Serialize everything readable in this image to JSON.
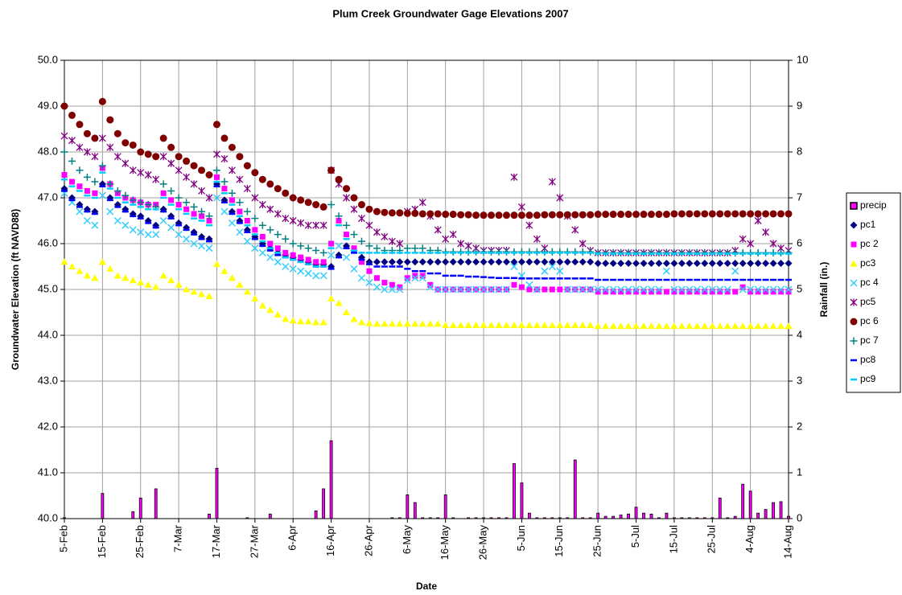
{
  "chart_data": {
    "type": "scatter",
    "title": "Plum Creek Groundwater Gage Elevations 2007",
    "x_label": "Date",
    "y_label": "Groundwater Elevation (ft NAVD88)",
    "y2_label": "Rainfall (in.)",
    "grid": true,
    "legend": "right",
    "ylim": [
      40,
      50
    ],
    "yticks": [
      {
        "value": 40,
        "label": "40.0"
      },
      {
        "value": 41,
        "label": "41.0"
      },
      {
        "value": 42,
        "label": "42.0"
      },
      {
        "value": 43,
        "label": "43.0"
      },
      {
        "value": 44,
        "label": "44.0"
      },
      {
        "value": 45,
        "label": "45.0"
      },
      {
        "value": 46,
        "label": "46.0"
      },
      {
        "value": 47,
        "label": "47.0"
      },
      {
        "value": 48,
        "label": "48.0"
      },
      {
        "value": 49,
        "label": "49.0"
      },
      {
        "value": 50,
        "label": "50.0"
      }
    ],
    "y2lim": [
      0,
      10
    ],
    "y2ticks": [
      0,
      1,
      2,
      3,
      4,
      5,
      6,
      7,
      8,
      9,
      10
    ],
    "categories": [
      "5-Feb",
      null,
      null,
      null,
      null,
      "15-Feb",
      null,
      null,
      null,
      null,
      "25-Feb",
      null,
      null,
      null,
      null,
      "7-Mar",
      null,
      null,
      null,
      null,
      "17-Mar",
      null,
      null,
      null,
      null,
      "27-Mar",
      null,
      null,
      null,
      null,
      "6-Apr",
      null,
      null,
      null,
      null,
      "16-Apr",
      null,
      null,
      null,
      null,
      "26-Apr",
      null,
      null,
      null,
      null,
      "6-May",
      null,
      null,
      null,
      null,
      "16-May",
      null,
      null,
      null,
      null,
      "26-May",
      null,
      null,
      null,
      null,
      "5-Jun",
      null,
      null,
      null,
      null,
      "15-Jun",
      null,
      null,
      null,
      null,
      "25-Jun",
      null,
      null,
      null,
      null,
      "5-Jul",
      null,
      null,
      null,
      null,
      "15-Jul",
      null,
      null,
      null,
      null,
      "25-Jul",
      null,
      null,
      null,
      null,
      "4-Aug",
      null,
      null,
      null,
      null,
      "14-Aug"
    ],
    "series": [
      {
        "name": "precip",
        "type": "bar",
        "axis": "y2",
        "color": "#ff00ff",
        "values": [
          0.02,
          0,
          0,
          0,
          0,
          0.55,
          0,
          0,
          0,
          0.15,
          0.45,
          0,
          0.65,
          0,
          0,
          0,
          0,
          0,
          0,
          0.1,
          1.1,
          0,
          0,
          0,
          0.02,
          0,
          0,
          0.1,
          0,
          0,
          0,
          0,
          0,
          0.17,
          0.65,
          1.7,
          0,
          0,
          0,
          0,
          0,
          0,
          0,
          0.02,
          0.02,
          0.52,
          0.35,
          0.02,
          0.02,
          0.02,
          0.52,
          0.02,
          0,
          0.02,
          0.02,
          0.02,
          0.02,
          0.02,
          0.02,
          1.2,
          0.78,
          0.12,
          0.02,
          0.02,
          0.02,
          0.02,
          0.02,
          1.28,
          0.02,
          0.02,
          0.12,
          0.05,
          0.05,
          0.08,
          0.1,
          0.25,
          0.12,
          0.1,
          0.02,
          0.12,
          0.02,
          0.02,
          0.02,
          0.02,
          0.02,
          0.02,
          0.45,
          0.02,
          0.05,
          0.75,
          0.6,
          0.12,
          0.2,
          0.35,
          0.37,
          0.05
        ]
      },
      {
        "name": "pc1",
        "marker": "diamond",
        "color": "#000080",
        "values": [
          47.2,
          47.0,
          46.85,
          46.75,
          46.7,
          47.3,
          47.0,
          46.85,
          46.75,
          46.65,
          46.6,
          46.5,
          46.4,
          46.75,
          46.6,
          46.45,
          46.35,
          46.25,
          46.15,
          46.1,
          47.3,
          46.95,
          46.7,
          46.5,
          46.3,
          46.15,
          46.0,
          45.9,
          45.8,
          45.75,
          45.7,
          45.65,
          45.6,
          45.55,
          45.55,
          45.5,
          45.75,
          45.95,
          45.85,
          45.7,
          45.6,
          45.6,
          45.6,
          45.6,
          45.6,
          45.6,
          45.6,
          45.6,
          45.6,
          45.6,
          45.6,
          45.6,
          45.6,
          45.6,
          45.6,
          45.6,
          45.6,
          45.6,
          45.6,
          45.6,
          45.6,
          45.6,
          45.6,
          45.6,
          45.6,
          45.6,
          45.6,
          45.6,
          45.6,
          45.6,
          45.57,
          45.57,
          45.57,
          45.57,
          45.57,
          45.57,
          45.57,
          45.57,
          45.57,
          45.57,
          45.57,
          45.57,
          45.57,
          45.57,
          45.57,
          45.57,
          45.57,
          45.57,
          45.57,
          45.57,
          45.57,
          45.57,
          45.57,
          45.57,
          45.57,
          45.57
        ]
      },
      {
        "name": "pc 2",
        "marker": "square",
        "color": "#ff00ff",
        "values": [
          47.5,
          47.35,
          47.25,
          47.15,
          47.1,
          47.65,
          47.3,
          47.1,
          47.0,
          46.95,
          46.9,
          46.85,
          46.85,
          47.1,
          46.95,
          46.85,
          46.75,
          46.65,
          46.6,
          46.5,
          47.45,
          47.2,
          46.95,
          46.7,
          46.5,
          46.3,
          46.15,
          46.0,
          45.9,
          45.8,
          45.75,
          45.7,
          45.65,
          45.6,
          45.6,
          46.0,
          46.5,
          46.2,
          45.9,
          45.6,
          45.4,
          45.25,
          45.15,
          45.1,
          45.05,
          45.25,
          45.3,
          45.3,
          45.1,
          45.0,
          45.0,
          45.0,
          45.0,
          45.0,
          45.0,
          45.0,
          45.0,
          45.0,
          45.0,
          45.1,
          45.05,
          45.0,
          45.0,
          45.0,
          45.0,
          45.0,
          45.0,
          45.0,
          45.0,
          45.0,
          44.95,
          44.95,
          44.95,
          44.95,
          44.95,
          44.95,
          44.95,
          44.95,
          44.95,
          44.95,
          44.95,
          44.95,
          44.95,
          44.95,
          44.95,
          44.95,
          44.95,
          44.95,
          44.95,
          45.05,
          44.95,
          44.95,
          44.95,
          44.95,
          44.95,
          44.95
        ]
      },
      {
        "name": "pc3",
        "marker": "triangle",
        "color": "#ffff00",
        "values": [
          45.6,
          45.5,
          45.4,
          45.3,
          45.25,
          45.6,
          45.45,
          45.3,
          45.25,
          45.2,
          45.15,
          45.1,
          45.05,
          45.3,
          45.2,
          45.1,
          45.0,
          44.95,
          44.9,
          44.85,
          45.55,
          45.4,
          45.25,
          45.1,
          44.95,
          44.8,
          44.65,
          44.55,
          44.45,
          44.35,
          44.32,
          44.3,
          44.3,
          44.28,
          44.28,
          44.8,
          44.7,
          44.5,
          44.35,
          44.28,
          44.26,
          44.25,
          44.25,
          44.25,
          44.25,
          44.25,
          44.25,
          44.25,
          44.25,
          44.25,
          44.22,
          44.22,
          44.22,
          44.22,
          44.22,
          44.22,
          44.22,
          44.22,
          44.22,
          44.22,
          44.22,
          44.22,
          44.22,
          44.22,
          44.22,
          44.22,
          44.22,
          44.22,
          44.22,
          44.22,
          44.2,
          44.2,
          44.2,
          44.2,
          44.2,
          44.2,
          44.2,
          44.2,
          44.2,
          44.2,
          44.2,
          44.2,
          44.2,
          44.2,
          44.2,
          44.2,
          44.2,
          44.2,
          44.2,
          44.2,
          44.2,
          44.2,
          44.2,
          44.2,
          44.2,
          44.2
        ]
      },
      {
        "name": "pc 4",
        "marker": "x",
        "color": "#33ccff",
        "values": [
          47.1,
          46.9,
          46.7,
          46.5,
          46.4,
          47.05,
          46.7,
          46.5,
          46.4,
          46.3,
          46.25,
          46.2,
          46.2,
          46.5,
          46.35,
          46.2,
          46.1,
          46.0,
          45.95,
          45.9,
          47.0,
          46.7,
          46.45,
          46.25,
          46.05,
          45.9,
          45.8,
          45.7,
          45.6,
          45.5,
          45.45,
          45.4,
          45.35,
          45.3,
          45.3,
          45.75,
          45.95,
          45.7,
          45.45,
          45.25,
          45.15,
          45.05,
          45.0,
          45.0,
          45.0,
          45.2,
          45.25,
          45.25,
          45.05,
          45.0,
          45.0,
          45.0,
          45.0,
          45.0,
          45.0,
          45.0,
          45.0,
          45.0,
          45.0,
          45.5,
          45.3,
          45.1,
          45.0,
          45.4,
          45.5,
          45.4,
          45.0,
          45.0,
          45.0,
          45.0,
          45.0,
          45.0,
          45.0,
          45.0,
          45.0,
          45.0,
          45.0,
          45.0,
          45.0,
          45.4,
          45.0,
          45.0,
          45.0,
          45.0,
          45.0,
          45.0,
          45.0,
          45.0,
          45.4,
          45.0,
          45.0,
          45.0,
          45.0,
          45.0,
          45.0,
          45.0
        ]
      },
      {
        "name": "pc5",
        "marker": "star",
        "color": "#800080",
        "values": [
          48.35,
          48.25,
          48.1,
          48.0,
          47.9,
          48.3,
          48.1,
          47.9,
          47.75,
          47.6,
          47.55,
          47.5,
          47.4,
          47.9,
          47.75,
          47.6,
          47.45,
          47.3,
          47.15,
          47.0,
          47.95,
          47.85,
          47.6,
          47.4,
          47.2,
          47.0,
          46.85,
          46.75,
          46.65,
          46.55,
          46.5,
          46.45,
          46.4,
          46.4,
          46.4,
          47.6,
          47.3,
          47.0,
          46.75,
          46.55,
          46.4,
          46.25,
          46.15,
          46.05,
          46.0,
          46.7,
          46.75,
          46.9,
          46.6,
          46.3,
          46.1,
          46.2,
          46.0,
          45.95,
          45.9,
          45.85,
          45.85,
          45.85,
          45.85,
          47.45,
          46.8,
          46.4,
          46.1,
          45.9,
          47.35,
          47.0,
          46.6,
          46.3,
          46.0,
          45.85,
          45.8,
          45.8,
          45.8,
          45.8,
          45.8,
          45.8,
          45.8,
          45.8,
          45.8,
          45.8,
          45.8,
          45.8,
          45.8,
          45.8,
          45.8,
          45.8,
          45.8,
          45.8,
          45.85,
          46.1,
          46.0,
          46.5,
          46.25,
          46.0,
          45.9,
          45.85
        ]
      },
      {
        "name": "pc 6",
        "marker": "circle",
        "color": "#800000",
        "values": [
          49.0,
          48.8,
          48.6,
          48.4,
          48.3,
          49.1,
          48.7,
          48.4,
          48.2,
          48.15,
          48.0,
          47.95,
          47.9,
          48.3,
          48.1,
          47.9,
          47.8,
          47.7,
          47.6,
          47.5,
          48.6,
          48.3,
          48.1,
          47.9,
          47.7,
          47.55,
          47.4,
          47.3,
          47.2,
          47.1,
          47.0,
          46.95,
          46.9,
          46.85,
          46.8,
          47.6,
          47.4,
          47.2,
          47.0,
          46.85,
          46.75,
          46.7,
          46.68,
          46.67,
          46.67,
          46.66,
          46.66,
          46.65,
          46.65,
          46.65,
          46.64,
          46.64,
          46.63,
          46.63,
          46.62,
          46.62,
          46.62,
          46.62,
          46.62,
          46.62,
          46.62,
          46.62,
          46.62,
          46.63,
          46.63,
          46.63,
          46.63,
          46.63,
          46.63,
          46.63,
          46.64,
          46.64,
          46.64,
          46.64,
          46.64,
          46.64,
          46.64,
          46.64,
          46.64,
          46.64,
          46.65,
          46.65,
          46.65,
          46.65,
          46.65,
          46.65,
          46.65,
          46.65,
          46.65,
          46.65,
          46.65,
          46.65,
          46.65,
          46.65,
          46.65,
          46.65
        ]
      },
      {
        "name": "pc 7",
        "marker": "plus",
        "color": "#008080",
        "values": [
          48.0,
          47.8,
          47.6,
          47.45,
          47.35,
          47.7,
          47.3,
          47.15,
          47.05,
          46.95,
          46.9,
          46.85,
          46.8,
          47.3,
          47.15,
          47.0,
          46.9,
          46.8,
          46.7,
          46.6,
          47.6,
          47.35,
          47.1,
          46.9,
          46.7,
          46.55,
          46.4,
          46.3,
          46.2,
          46.1,
          46.0,
          45.95,
          45.9,
          45.85,
          45.8,
          46.85,
          46.6,
          46.4,
          46.2,
          46.05,
          45.95,
          45.9,
          45.85,
          45.85,
          45.85,
          45.9,
          45.9,
          45.9,
          45.85,
          45.85,
          45.82,
          45.82,
          45.82,
          45.82,
          45.82,
          45.82,
          45.82,
          45.82,
          45.82,
          45.82,
          45.82,
          45.82,
          45.82,
          45.82,
          45.82,
          45.82,
          45.82,
          45.82,
          45.82,
          45.82,
          45.8,
          45.8,
          45.8,
          45.8,
          45.8,
          45.8,
          45.8,
          45.8,
          45.8,
          45.8,
          45.8,
          45.8,
          45.8,
          45.8,
          45.8,
          45.8,
          45.8,
          45.8,
          45.8,
          45.8,
          45.8,
          45.8,
          45.8,
          45.8,
          45.8,
          45.8
        ]
      },
      {
        "name": "pc8",
        "marker": "dash",
        "color": "#0000ff",
        "values": [
          47.15,
          46.95,
          46.8,
          46.7,
          46.65,
          47.25,
          46.95,
          46.8,
          46.7,
          46.6,
          46.55,
          46.45,
          46.35,
          46.7,
          46.55,
          46.4,
          46.3,
          46.2,
          46.1,
          46.05,
          47.25,
          46.9,
          46.65,
          46.45,
          46.25,
          46.1,
          45.95,
          45.85,
          45.75,
          45.7,
          45.65,
          45.6,
          45.55,
          45.5,
          45.5,
          45.45,
          45.7,
          45.9,
          45.8,
          45.65,
          45.55,
          45.5,
          45.5,
          45.5,
          45.5,
          45.45,
          45.4,
          45.4,
          45.35,
          45.35,
          45.3,
          45.3,
          45.3,
          45.28,
          45.28,
          45.27,
          45.26,
          45.25,
          45.25,
          45.25,
          45.24,
          45.24,
          45.24,
          45.24,
          45.24,
          45.24,
          45.24,
          45.24,
          45.24,
          45.24,
          45.21,
          45.21,
          45.21,
          45.21,
          45.21,
          45.21,
          45.21,
          45.21,
          45.21,
          45.21,
          45.21,
          45.21,
          45.21,
          45.21,
          45.21,
          45.21,
          45.21,
          45.21,
          45.21,
          45.21,
          45.21,
          45.21,
          45.21,
          45.21,
          45.21,
          45.21
        ]
      },
      {
        "name": "pc9",
        "marker": "dash",
        "color": "#00ccff",
        "values": [
          47.4,
          47.25,
          47.15,
          47.05,
          47.0,
          47.55,
          47.2,
          47.0,
          46.9,
          46.85,
          46.8,
          46.75,
          46.75,
          47.0,
          46.85,
          46.75,
          46.65,
          46.55,
          46.5,
          46.4,
          47.35,
          47.1,
          46.85,
          46.6,
          46.4,
          46.2,
          46.05,
          45.9,
          45.8,
          45.7,
          45.65,
          45.6,
          45.55,
          45.5,
          45.5,
          45.9,
          46.4,
          46.1,
          45.85,
          45.8,
          45.8,
          45.8,
          45.8,
          45.8,
          45.8,
          45.8,
          45.8,
          45.8,
          45.8,
          45.8,
          45.8,
          45.8,
          45.8,
          45.8,
          45.8,
          45.8,
          45.8,
          45.8,
          45.8,
          45.8,
          45.8,
          45.8,
          45.8,
          45.8,
          45.8,
          45.8,
          45.8,
          45.8,
          45.8,
          45.8,
          45.78,
          45.78,
          45.78,
          45.78,
          45.78,
          45.78,
          45.78,
          45.78,
          45.78,
          45.78,
          45.78,
          45.78,
          45.78,
          45.78,
          45.78,
          45.78,
          45.78,
          45.78,
          45.78,
          45.78,
          45.78,
          45.78,
          45.78,
          45.78,
          45.78,
          45.78
        ]
      }
    ]
  }
}
